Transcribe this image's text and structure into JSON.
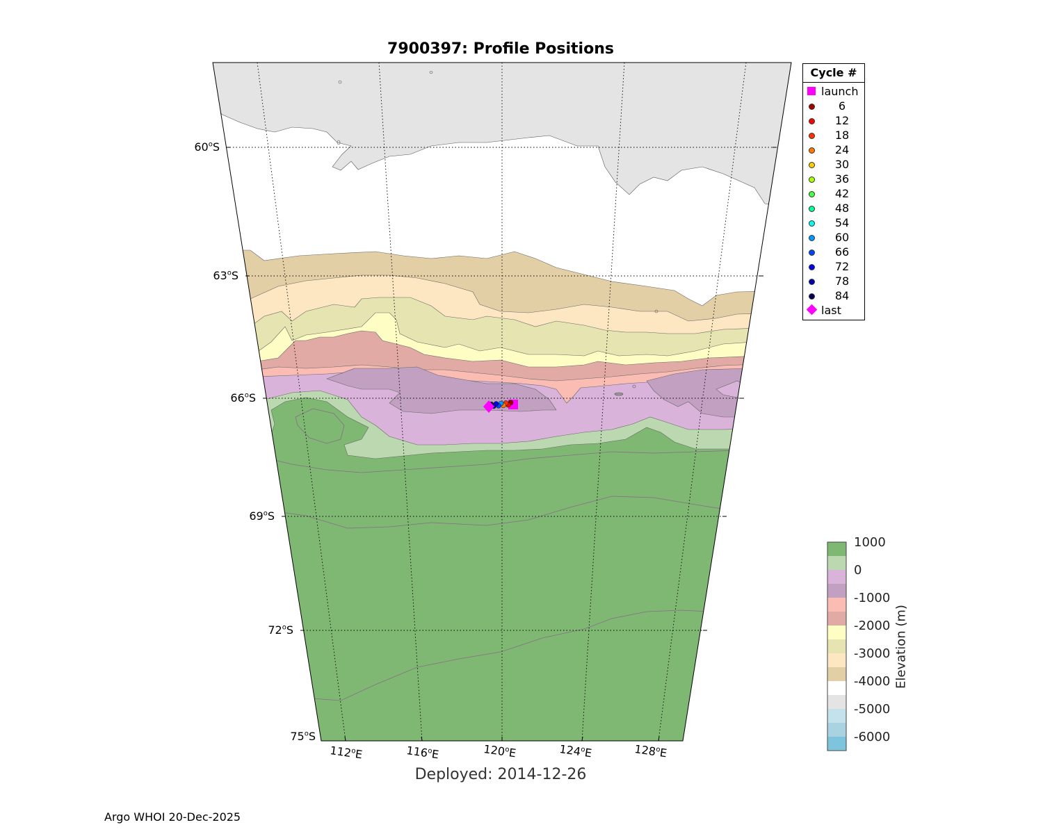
{
  "title": "7900397: Profile Positions",
  "deployed": "Deployed: 2014-12-26",
  "credit": "Argo WHOI 20-Dec-2025",
  "lat_labels": [
    {
      "deg": "60",
      "hemi": "S"
    },
    {
      "deg": "63",
      "hemi": "S"
    },
    {
      "deg": "66",
      "hemi": "S"
    },
    {
      "deg": "69",
      "hemi": "S"
    },
    {
      "deg": "72",
      "hemi": "S"
    },
    {
      "deg": "75",
      "hemi": "S"
    }
  ],
  "lon_labels": [
    {
      "deg": "112",
      "hemi": "E"
    },
    {
      "deg": "116",
      "hemi": "E"
    },
    {
      "deg": "120",
      "hemi": "E"
    },
    {
      "deg": "124",
      "hemi": "E"
    },
    {
      "deg": "128",
      "hemi": "E"
    }
  ],
  "legend": {
    "header": "Cycle #",
    "items": [
      {
        "label": "launch",
        "marker": "square",
        "color": "#ff00ff"
      },
      {
        "label": "6",
        "marker": "dot",
        "color": "#a00000"
      },
      {
        "label": "12",
        "marker": "dot",
        "color": "#ff0000"
      },
      {
        "label": "18",
        "marker": "dot",
        "color": "#ff3300"
      },
      {
        "label": "24",
        "marker": "dot",
        "color": "#ff7700"
      },
      {
        "label": "30",
        "marker": "dot",
        "color": "#ffcc00"
      },
      {
        "label": "36",
        "marker": "dot",
        "color": "#aaff00"
      },
      {
        "label": "42",
        "marker": "dot",
        "color": "#44ff44"
      },
      {
        "label": "48",
        "marker": "dot",
        "color": "#00ff99"
      },
      {
        "label": "54",
        "marker": "dot",
        "color": "#00ffee"
      },
      {
        "label": "60",
        "marker": "dot",
        "color": "#0099ff"
      },
      {
        "label": "66",
        "marker": "dot",
        "color": "#0044ff"
      },
      {
        "label": "72",
        "marker": "dot",
        "color": "#0000ee"
      },
      {
        "label": "78",
        "marker": "dot",
        "color": "#0000aa"
      },
      {
        "label": "84",
        "marker": "dot",
        "color": "#000055"
      },
      {
        "label": "last",
        "marker": "diamond",
        "color": "#ff00ff"
      }
    ]
  },
  "colorbar": {
    "title": "Elevation (m)",
    "tick_labels": [
      "1000",
      "0",
      "-1000",
      "-2000",
      "-3000",
      "-4000",
      "-5000",
      "-6000"
    ],
    "colors": [
      "#7eb872",
      "#bcd8b0",
      "#d9b3d9",
      "#c1a0c1",
      "#fbbcb4",
      "#e2aaa4",
      "#fefec4",
      "#e6e4b0",
      "#fde6c2",
      "#e3cfa5",
      "#ffffff",
      "#e4e4e4",
      "#c4e2ec",
      "#a9d3e0",
      "#7fc4dd"
    ]
  },
  "colors": {
    "land": "#7eb872",
    "shelf": "#bcd8b0",
    "d0": "#d9b3d9",
    "d1": "#c1a0c1",
    "d2": "#fbbcb4",
    "d3": "#e2aaa4",
    "d4": "#fefec4",
    "d5": "#e6e4b0",
    "d6": "#fde6c2",
    "d7": "#e3cfa5",
    "d8": "#ffffff",
    "d9": "#e4e4e4"
  },
  "track": [
    {
      "cycle": "launch",
      "color": "#ff00ff"
    },
    {
      "cycle": "6",
      "color": "#a00000"
    },
    {
      "cycle": "12",
      "color": "#ff0000"
    },
    {
      "cycle": "18",
      "color": "#ff3300"
    },
    {
      "cycle": "24",
      "color": "#ff7700"
    },
    {
      "cycle": "60",
      "color": "#0099ff"
    },
    {
      "cycle": "66",
      "color": "#0044ff"
    },
    {
      "cycle": "72",
      "color": "#0000ee"
    },
    {
      "cycle": "78",
      "color": "#0000aa"
    },
    {
      "cycle": "84",
      "color": "#000055"
    },
    {
      "cycle": "last",
      "color": "#ff00ff"
    }
  ]
}
